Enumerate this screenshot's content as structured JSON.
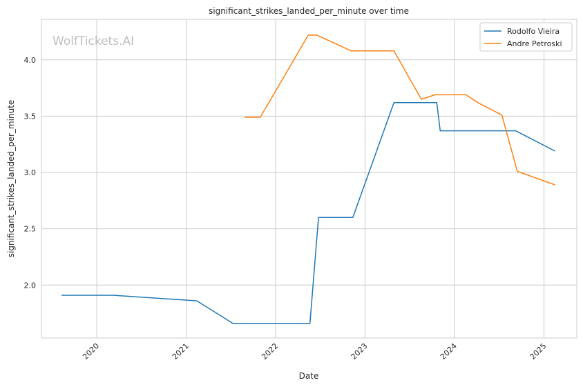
{
  "chart_data": {
    "type": "line",
    "title": "significant_strikes_landed_per_minute over time",
    "xlabel": "Date",
    "ylabel": "significant_strikes_landed_per_minute",
    "watermark": "WolfTickets.AI",
    "x_ticks": [
      "2020",
      "2021",
      "2022",
      "2023",
      "2024",
      "2025"
    ],
    "y_ticks": [
      "2.0",
      "2.5",
      "3.0",
      "3.5",
      "4.0"
    ],
    "xlim": [
      "2019-05-20",
      "2025-05-15"
    ],
    "ylim": [
      1.53,
      4.36
    ],
    "grid": true,
    "legend_position": "top-right",
    "series": [
      {
        "name": "Rodolfo Vieira",
        "color": "#1f77b4",
        "points": [
          [
            "2019-08-10",
            1.91
          ],
          [
            "2020-03-07",
            1.91
          ],
          [
            "2021-02-13",
            1.86
          ],
          [
            "2021-07-10",
            1.66
          ],
          [
            "2022-05-21",
            1.66
          ],
          [
            "2022-06-25",
            2.6
          ],
          [
            "2022-11-12",
            2.6
          ],
          [
            "2023-04-29",
            3.62
          ],
          [
            "2023-10-21",
            3.62
          ],
          [
            "2023-11-04",
            3.37
          ],
          [
            "2024-09-07",
            3.37
          ],
          [
            "2025-02-15",
            3.19
          ]
        ]
      },
      {
        "name": "Andre Petroski",
        "color": "#ff7f0e",
        "points": [
          [
            "2021-08-28",
            3.49
          ],
          [
            "2021-10-30",
            3.49
          ],
          [
            "2022-05-14",
            4.22
          ],
          [
            "2022-06-18",
            4.22
          ],
          [
            "2022-11-05",
            4.08
          ],
          [
            "2023-04-29",
            4.08
          ],
          [
            "2023-08-19",
            3.65
          ],
          [
            "2023-10-14",
            3.69
          ],
          [
            "2024-02-17",
            3.69
          ],
          [
            "2024-04-06",
            3.62
          ],
          [
            "2024-07-13",
            3.51
          ],
          [
            "2024-09-14",
            3.01
          ],
          [
            "2025-02-15",
            2.89
          ]
        ]
      }
    ]
  }
}
